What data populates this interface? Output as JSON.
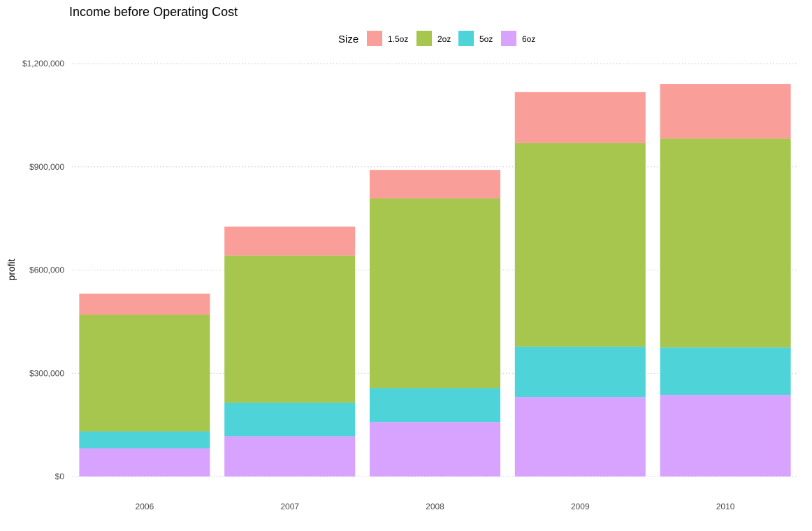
{
  "chart_data": {
    "type": "bar",
    "stacked": true,
    "title": "Income before Operating Cost",
    "xlabel": "",
    "ylabel": "profit",
    "categories": [
      "2006",
      "2007",
      "2008",
      "2009",
      "2010"
    ],
    "series": [
      {
        "name": "6oz",
        "color": "#d7a3ff",
        "values": [
          82000,
          117000,
          158000,
          231000,
          237000
        ]
      },
      {
        "name": "5oz",
        "color": "#4dd3d8",
        "values": [
          49000,
          97000,
          99000,
          146000,
          138000
        ]
      },
      {
        "name": "2oz",
        "color": "#a6c64e",
        "values": [
          339000,
          428000,
          551000,
          592000,
          607000
        ]
      },
      {
        "name": "1.5oz",
        "color": "#f99e98",
        "values": [
          61000,
          84000,
          83000,
          148000,
          159000
        ]
      }
    ],
    "ylim": [
      0,
      1200000
    ],
    "yticks": [
      0,
      300000,
      600000,
      900000,
      1200000
    ],
    "ytick_labels": [
      "$0",
      "$300,000",
      "$600,000",
      "$900,000",
      "$1,200,000"
    ],
    "grid": true,
    "legend": {
      "title": "Size",
      "position": "top",
      "order": [
        "1.5oz",
        "2oz",
        "5oz",
        "6oz"
      ]
    }
  }
}
